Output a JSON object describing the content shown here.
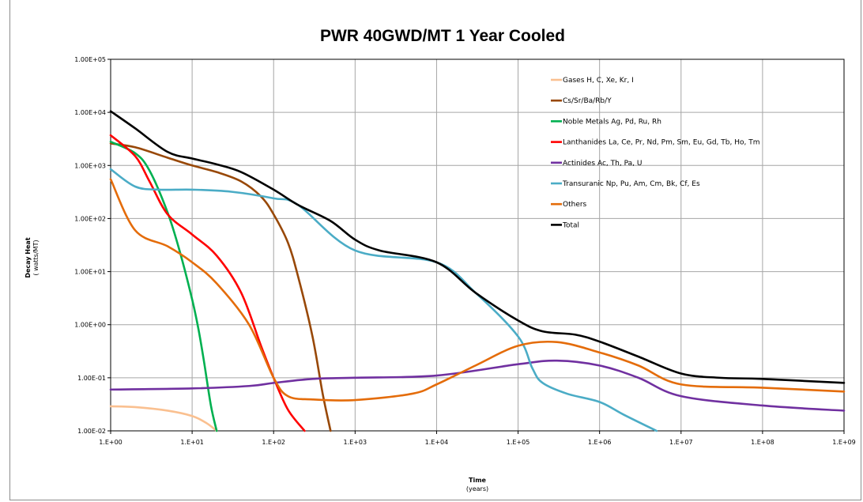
{
  "chart_data": {
    "type": "line",
    "title": "PWR 40GWD/MT 1 Year Cooled",
    "xlabel": "Time",
    "xlabel_unit": "(years)",
    "ylabel": "Decay Heat",
    "ylabel_unit": "( watts/MT)",
    "x_scale": "log",
    "y_scale": "log",
    "xlim": [
      1,
      1000000000
    ],
    "ylim": [
      0.01,
      100000
    ],
    "grid": true,
    "legend_position": "top-right",
    "x_ticks": [
      {
        "value": 1,
        "label": "1.E+00"
      },
      {
        "value": 10,
        "label": "1.E+01"
      },
      {
        "value": 100,
        "label": "1.E+02"
      },
      {
        "value": 1000,
        "label": "1.E+03"
      },
      {
        "value": 10000,
        "label": "1.E+04"
      },
      {
        "value": 100000,
        "label": "1.E+05"
      },
      {
        "value": 1000000,
        "label": "1.E+06"
      },
      {
        "value": 10000000,
        "label": "1.E+07"
      },
      {
        "value": 100000000,
        "label": "1.E+08"
      },
      {
        "value": 1000000000,
        "label": "1.E+09"
      }
    ],
    "y_ticks": [
      {
        "value": 0.01,
        "label": "1.00E-02"
      },
      {
        "value": 0.1,
        "label": "1.00E-01"
      },
      {
        "value": 1,
        "label": "1.00E+00"
      },
      {
        "value": 10,
        "label": "1.00E+01"
      },
      {
        "value": 100,
        "label": "1.00E+02"
      },
      {
        "value": 1000,
        "label": "1.00E+03"
      },
      {
        "value": 10000,
        "label": "1.00E+04"
      },
      {
        "value": 100000,
        "label": "1.00E+05"
      }
    ],
    "series": [
      {
        "name": "Gases H, C, Xe, Kr, I",
        "color": "#fac090",
        "points": [
          [
            1,
            0.029
          ],
          [
            2,
            0.028
          ],
          [
            5,
            0.024
          ],
          [
            10,
            0.019
          ],
          [
            15,
            0.014
          ],
          [
            20,
            0.01
          ]
        ]
      },
      {
        "name": "Cs/Sr/Ba/Rb/Y",
        "color": "#984807",
        "points": [
          [
            1,
            2600
          ],
          [
            2,
            2200
          ],
          [
            5,
            1400
          ],
          [
            10,
            1000
          ],
          [
            20,
            750
          ],
          [
            40,
            500
          ],
          [
            70,
            260
          ],
          [
            100,
            120
          ],
          [
            150,
            35
          ],
          [
            200,
            8
          ],
          [
            300,
            0.6
          ],
          [
            400,
            0.05
          ],
          [
            500,
            0.01
          ]
        ]
      },
      {
        "name": "Noble Metals  Ag, Pd, Ru, Rh",
        "color": "#00b050",
        "points": [
          [
            1,
            2800
          ],
          [
            2,
            1700
          ],
          [
            3,
            800
          ],
          [
            5,
            130
          ],
          [
            7,
            25
          ],
          [
            10,
            3
          ],
          [
            12,
            0.8
          ],
          [
            14,
            0.2
          ],
          [
            17,
            0.03
          ],
          [
            20,
            0.01
          ]
        ]
      },
      {
        "name": "Lanthanides La, Ce, Pr, Nd, Pm, Sm, Eu, Gd, Tb, Ho, Tm",
        "color": "#ff0000",
        "points": [
          [
            1,
            3700
          ],
          [
            2,
            1500
          ],
          [
            3,
            500
          ],
          [
            5,
            120
          ],
          [
            10,
            50
          ],
          [
            20,
            20
          ],
          [
            40,
            4
          ],
          [
            70,
            0.4
          ],
          [
            100,
            0.1
          ],
          [
            150,
            0.025
          ],
          [
            240,
            0.01
          ]
        ]
      },
      {
        "name": "Actinides Ac, Th, Pa, U",
        "color": "#7030a0",
        "points": [
          [
            1,
            0.06
          ],
          [
            10,
            0.063
          ],
          [
            50,
            0.07
          ],
          [
            100,
            0.08
          ],
          [
            300,
            0.095
          ],
          [
            1000,
            0.1
          ],
          [
            10000,
            0.11
          ],
          [
            100000,
            0.18
          ],
          [
            300000,
            0.21
          ],
          [
            1000000,
            0.17
          ],
          [
            3000000,
            0.1
          ],
          [
            10000000,
            0.045
          ],
          [
            100000000,
            0.03
          ],
          [
            1000000000,
            0.024
          ]
        ]
      },
      {
        "name": "Transuranic Np, Pu, Am, Cm,  Bk, Cf, Es",
        "color": "#4bacc6",
        "points": [
          [
            1,
            850
          ],
          [
            2,
            400
          ],
          [
            4,
            350
          ],
          [
            10,
            350
          ],
          [
            30,
            320
          ],
          [
            100,
            240
          ],
          [
            200,
            180
          ],
          [
            1000,
            25
          ],
          [
            10000,
            15
          ],
          [
            30000,
            4
          ],
          [
            100000,
            0.6
          ],
          [
            150000,
            0.15
          ],
          [
            200000,
            0.08
          ],
          [
            400000,
            0.05
          ],
          [
            1000000,
            0.035
          ],
          [
            2000000,
            0.02
          ],
          [
            5000000,
            0.01
          ]
        ]
      },
      {
        "name": "Others",
        "color": "#e46c0a",
        "points": [
          [
            1,
            550
          ],
          [
            2,
            60
          ],
          [
            5,
            30
          ],
          [
            10,
            15
          ],
          [
            20,
            6
          ],
          [
            50,
            1
          ],
          [
            100,
            0.1
          ],
          [
            150,
            0.045
          ],
          [
            300,
            0.039
          ],
          [
            1000,
            0.038
          ],
          [
            5000,
            0.05
          ],
          [
            10000,
            0.075
          ],
          [
            30000,
            0.17
          ],
          [
            100000,
            0.4
          ],
          [
            300000,
            0.47
          ],
          [
            1000000,
            0.3
          ],
          [
            3000000,
            0.17
          ],
          [
            10000000,
            0.075
          ],
          [
            100000000,
            0.065
          ],
          [
            1000000000,
            0.055
          ]
        ]
      },
      {
        "name": "Total",
        "color": "#000000",
        "points": [
          [
            1,
            10500
          ],
          [
            2,
            5000
          ],
          [
            5,
            1800
          ],
          [
            10,
            1350
          ],
          [
            20,
            1050
          ],
          [
            40,
            750
          ],
          [
            100,
            350
          ],
          [
            200,
            180
          ],
          [
            500,
            90
          ],
          [
            1000,
            40
          ],
          [
            2000,
            25
          ],
          [
            10000,
            15
          ],
          [
            30000,
            4
          ],
          [
            100000,
            1.2
          ],
          [
            200000,
            0.75
          ],
          [
            500000,
            0.65
          ],
          [
            1000000,
            0.48
          ],
          [
            3000000,
            0.25
          ],
          [
            10000000,
            0.12
          ],
          [
            30000000,
            0.1
          ],
          [
            100000000,
            0.095
          ],
          [
            1000000000,
            0.08
          ]
        ]
      }
    ]
  }
}
